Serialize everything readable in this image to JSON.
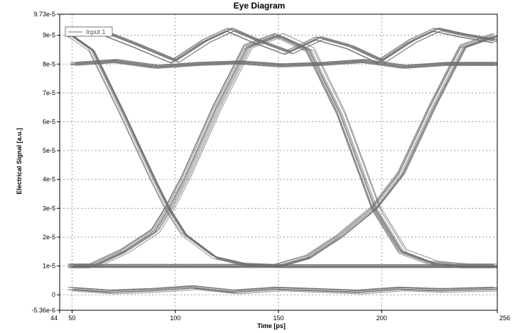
{
  "chart_data": {
    "type": "line",
    "title": "Eye Diagram",
    "xlabel": "Time [ps]",
    "ylabel": "Electrical Signal [a.u.]",
    "xlim": [
      44,
      256
    ],
    "ylim": [
      -5.36e-06,
      9.73e-05
    ],
    "x_ticks": [
      {
        "value": 44,
        "label": "44"
      },
      {
        "value": 50,
        "label": "50"
      },
      {
        "value": 100,
        "label": "100"
      },
      {
        "value": 150,
        "label": "150"
      },
      {
        "value": 200,
        "label": "200"
      },
      {
        "value": 256,
        "label": "256"
      }
    ],
    "y_ticks": [
      {
        "value": -5.36e-06,
        "label": "-5.36e-6"
      },
      {
        "value": 0,
        "label": "0"
      },
      {
        "value": 1e-05,
        "label": "1e-5"
      },
      {
        "value": 2e-05,
        "label": "2e-5"
      },
      {
        "value": 3e-05,
        "label": "3e-5"
      },
      {
        "value": 4e-05,
        "label": "4e-5"
      },
      {
        "value": 5e-05,
        "label": "5e-5"
      },
      {
        "value": 6e-05,
        "label": "6e-5"
      },
      {
        "value": 7e-05,
        "label": "7e-5"
      },
      {
        "value": 8e-05,
        "label": "8e-5"
      },
      {
        "value": 9e-05,
        "label": "9e-5"
      },
      {
        "value": 9.73e-05,
        "label": "9.73e-5"
      }
    ],
    "grid": true,
    "legend_position": "top-left",
    "series_color": "#6e6e6e",
    "grid_color": "#9a9a9a",
    "series": [
      {
        "name": "Input 1",
        "high_level": 8e-05,
        "low_level": 1e-06,
        "bit_period_ps": 100,
        "crossings": [
          {
            "x": 97,
            "y": 3e-05
          },
          {
            "x": 197,
            "y": 3e-05
          }
        ],
        "traces": [
          {
            "x": [
              50,
              60,
              75,
              90,
              97,
              105,
              120,
              135,
              150,
              165,
              180,
              197,
              210,
              225,
              240,
              256
            ],
            "y": [
              9e-05,
              8.5e-05,
              6.3e-05,
              4e-05,
              3e-05,
              2.1e-05,
              1.3e-05,
              1.05e-05,
              1e-05,
              1e-05,
              1e-05,
              1e-05,
              1e-05,
              1e-05,
              1e-05,
              1e-05
            ]
          },
          {
            "x": [
              50,
              60,
              75,
              90,
              97,
              105,
              120,
              135,
              150,
              165,
              180,
              197,
              210,
              225,
              240,
              256
            ],
            "y": [
              1e-05,
              1e-05,
              1.5e-05,
              2.2e-05,
              3e-05,
              4.1e-05,
              6.5e-05,
              8.6e-05,
              9e-05,
              8.5e-05,
              6.3e-05,
              3e-05,
              1.5e-05,
              1.1e-05,
              1e-05,
              1e-05
            ]
          },
          {
            "x": [
              50,
              60,
              75,
              90,
              97,
              105,
              120,
              135,
              150,
              165,
              180,
              197,
              210,
              225,
              240,
              256
            ],
            "y": [
              1e-05,
              1e-05,
              1e-05,
              1e-05,
              1e-05,
              1e-05,
              1e-05,
              1e-05,
              1e-05,
              1.3e-05,
              2e-05,
              3e-05,
              4.2e-05,
              6.5e-05,
              8.6e-05,
              9e-05
            ]
          },
          {
            "x": [
              50,
              70,
              90,
              110,
              130,
              150,
              170,
              190,
              210,
              230,
              256
            ],
            "y": [
              8e-05,
              8.1e-05,
              7.9e-05,
              8e-05,
              8.05e-05,
              7.95e-05,
              8e-05,
              8.1e-05,
              7.9e-05,
              8e-05,
              8e-05
            ]
          },
          {
            "x": [
              50,
              70,
              90,
              110,
              130,
              150,
              170,
              190,
              210,
              230,
              256
            ],
            "y": [
              2e-06,
              1e-06,
              1.5e-06,
              2.5e-06,
              1e-06,
              2e-06,
              1.5e-06,
              1e-06,
              2e-06,
              1.5e-06,
              2e-06
            ]
          },
          {
            "x": [
              50,
              62,
              80,
              100,
              115,
              127,
              140,
              155,
              170,
              185,
              200,
              215,
              227,
              240,
              256
            ],
            "y": [
              9e-05,
              9.2e-05,
              8.7e-05,
              8.1e-05,
              8.8e-05,
              9.2e-05,
              8.8e-05,
              8.4e-05,
              8.9e-05,
              8.6e-05,
              8.1e-05,
              8.8e-05,
              9.2e-05,
              9e-05,
              8.8e-05
            ]
          }
        ]
      }
    ]
  }
}
